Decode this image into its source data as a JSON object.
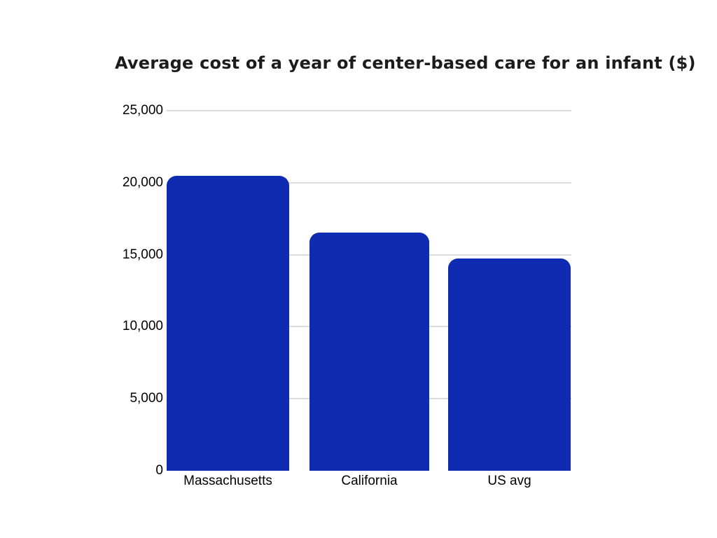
{
  "page": {
    "background_color": "#ffffff"
  },
  "chart_data": {
    "type": "bar",
    "title": "Average cost of a year of center-based care for an infant ($)",
    "categories": [
      "Massachusetts",
      "California",
      "US avg"
    ],
    "values": [
      20500,
      16550,
      14750
    ],
    "xlabel": "",
    "ylabel": "",
    "ylim": [
      0,
      25000
    ],
    "yticks": [
      0,
      5000,
      10000,
      15000,
      20000,
      25000
    ],
    "ytick_labels": [
      "0",
      "5,000",
      "10,000",
      "15,000",
      "20,000",
      "25,000"
    ],
    "grid": true,
    "legend": false,
    "bar_color": "#0e2bb2",
    "gridline_color": "#dcdcdc",
    "title_color": "#1c1c1c",
    "label_color": "#000000"
  }
}
